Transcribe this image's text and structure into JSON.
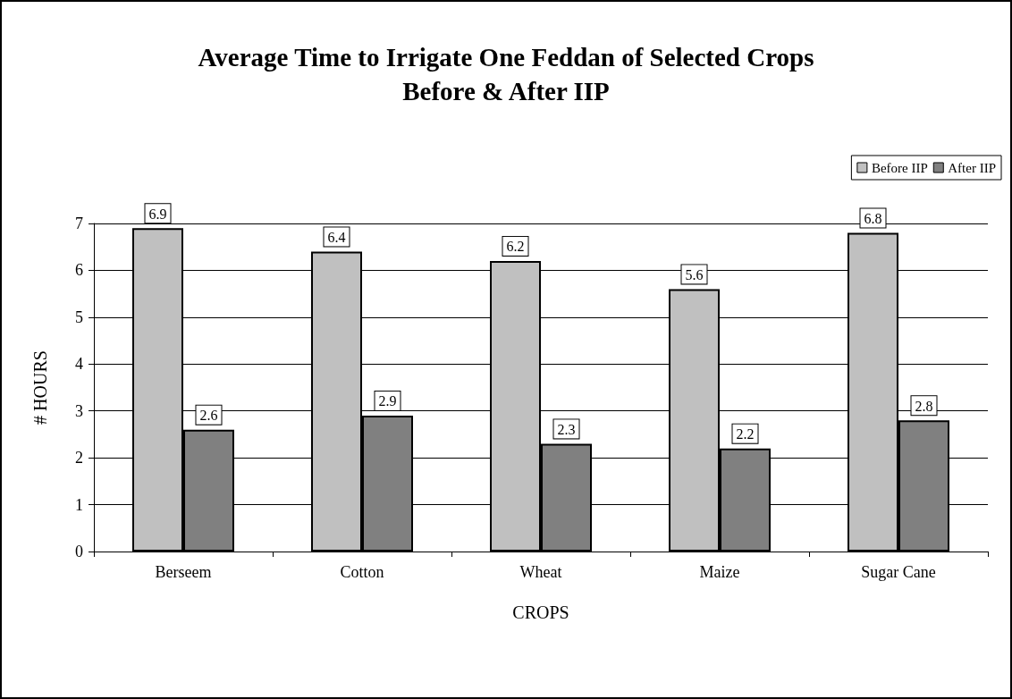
{
  "chart_data": {
    "type": "bar",
    "title": "Average Time to Irrigate One Feddan of Selected Crops\nBefore & After IIP",
    "xlabel": "CROPS",
    "ylabel": "# HOURS",
    "categories": [
      "Berseem",
      "Cotton",
      "Wheat",
      "Maize",
      "Sugar Cane"
    ],
    "series": [
      {
        "name": "Before IIP",
        "color": "#c0c0c0",
        "values": [
          6.9,
          6.4,
          6.2,
          5.6,
          6.8
        ]
      },
      {
        "name": "After IIP",
        "color": "#808080",
        "values": [
          2.6,
          2.9,
          2.3,
          2.2,
          2.8
        ]
      }
    ],
    "ylim": [
      0,
      7
    ],
    "yticks": [
      0,
      1,
      2,
      3,
      4,
      5,
      6,
      7
    ],
    "grid": "y",
    "legend": "top right",
    "data_labels": true
  }
}
